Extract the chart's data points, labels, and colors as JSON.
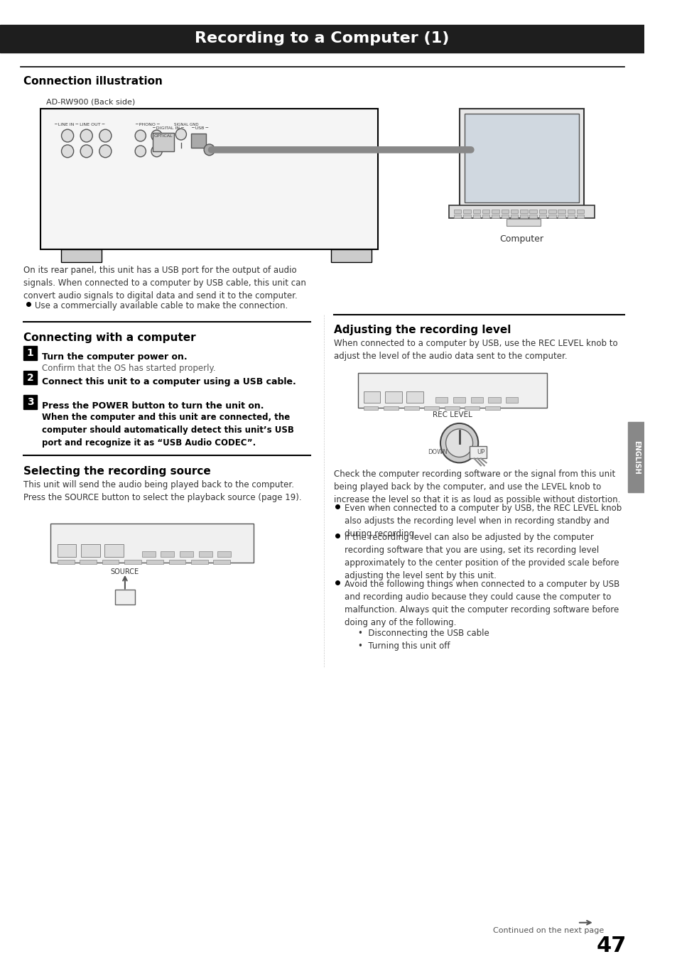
{
  "title": "Recording to a Computer (1)",
  "bg_color": "#ffffff",
  "header_bg": "#1e1e1e",
  "header_text_color": "#ffffff",
  "header_fontsize": 16,
  "page_number": "47",
  "section1_title": "Connection illustration",
  "device_label": "AD-RW900 (Back side)",
  "computer_label": "Computer",
  "body_text1": "On its rear panel, this unit has a USB port for the output of audio\nsignals. When connected to a computer by USB cable, this unit can\nconvert audio signals to digital data and send it to the computer.",
  "bullet1": "Use a commercially available cable to make the connection.",
  "section2_title": "Connecting with a computer",
  "step1_title": "Turn the computer power on.",
  "step1_body": "Confirm that the OS has started properly.",
  "step2_title": "Connect this unit to a computer using a USB cable.",
  "step3_title": "Press the POWER button to turn the unit on.",
  "step3_body": "When the computer and this unit are connected, the\ncomputer should automatically detect this unit’s USB\nport and recognize it as “USB Audio CODEC”.",
  "section3_title": "Selecting the recording source",
  "section3_body": "This unit will send the audio being played back to the computer.\nPress the SOURCE button to select the playback source (page 19).",
  "section4_title": "Adjusting the recording level",
  "section4_body1": "When connected to a computer by USB, use the REC LEVEL knob to\nadjust the level of the audio data sent to the computer.",
  "rec_level_label": "REC LEVEL",
  "section4_body2": "Check the computer recording software or the signal from this unit\nbeing played back by the computer, and use the LEVEL knob to\nincrease the level so that it is as loud as possible without distortion.",
  "bullet2": "Even when connected to a computer by USB, the REC LEVEL knob\nalso adjusts the recording level when in recording standby and\nduring recording.",
  "bullet3": "If the recording level can also be adjusted by the computer\nrecording software that you are using, set its recording level\napproximately to the center position of the provided scale before\nadjusting the level sent by this unit.",
  "bullet4": "Avoid the following things when connected to a computer by USB\nand recording audio because they could cause the computer to\nmalfunction. Always quit the computer recording software before\ndoing any of the following.",
  "subbullet1": "Disconnecting the USB cable",
  "subbullet2": "Turning this unit off",
  "continued_text": "Continued on the next page",
  "english_tab": "ENGLISH"
}
